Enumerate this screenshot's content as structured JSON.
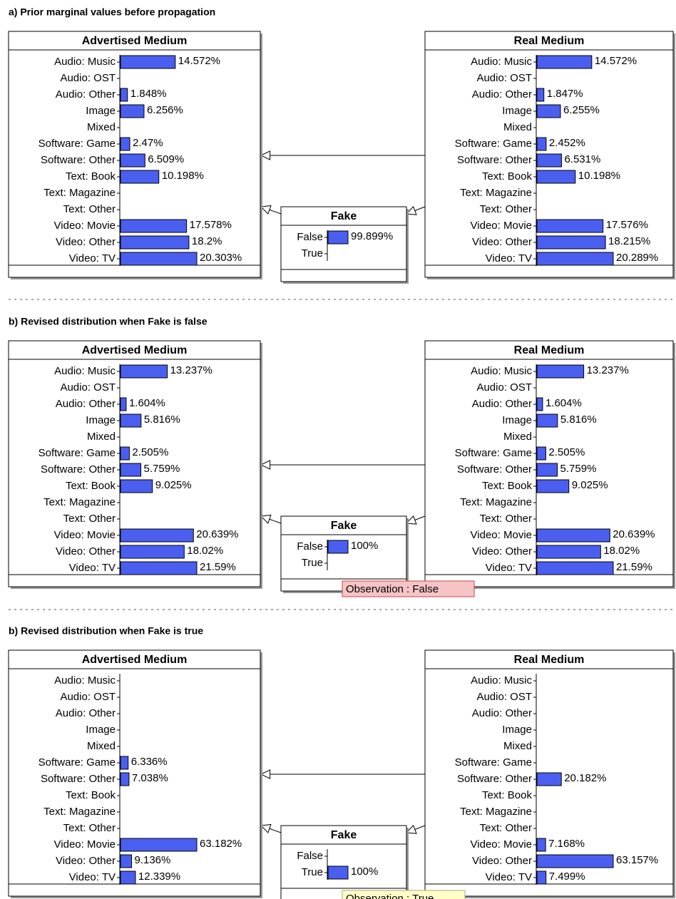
{
  "panels": [
    {
      "title": "a) Prior marginal values before propagation",
      "nodes": [
        {
          "title": "Advertised Medium",
          "states": [
            "Audio: Music",
            "Audio: OST",
            "Audio: Other",
            "Image",
            "Mixed",
            "Software: Game",
            "Software: Other",
            "Text: Book",
            "Text: Magazine",
            "Text: Other",
            "Video: Movie",
            "Video: Other",
            "Video: TV"
          ],
          "values": [
            14.572,
            null,
            1.848,
            6.256,
            null,
            2.47,
            6.509,
            10.198,
            null,
            null,
            17.578,
            18.2,
            20.303
          ],
          "value_labels": [
            "14.572%",
            null,
            "1.848%",
            "6.256%",
            null,
            "2.47%",
            "6.509%",
            "10.198%",
            null,
            null,
            "17.578%",
            "18.2%",
            "20.303%"
          ]
        },
        {
          "title": "Real Medium",
          "states": [
            "Audio: Music",
            "Audio: OST",
            "Audio: Other",
            "Image",
            "Mixed",
            "Software: Game",
            "Software: Other",
            "Text: Book",
            "Text: Magazine",
            "Text: Other",
            "Video: Movie",
            "Video: Other",
            "Video: TV"
          ],
          "values": [
            14.572,
            null,
            1.847,
            6.255,
            null,
            2.452,
            6.531,
            10.198,
            null,
            null,
            17.576,
            18.215,
            20.289
          ],
          "value_labels": [
            "14.572%",
            null,
            "1.847%",
            "6.255%",
            null,
            "2.452%",
            "6.531%",
            "10.198%",
            null,
            null,
            "17.576%",
            "18.215%",
            "20.289%"
          ]
        },
        {
          "title": "Fake",
          "states": [
            "False",
            "True"
          ],
          "values": [
            99.899,
            null
          ],
          "value_labels": [
            "99.899%",
            null
          ]
        }
      ]
    },
    {
      "title": "b) Revised distribution when Fake is false",
      "observation": "Observation : False",
      "nodes": [
        {
          "title": "Advertised Medium",
          "states": [
            "Audio: Music",
            "Audio: OST",
            "Audio: Other",
            "Image",
            "Mixed",
            "Software: Game",
            "Software: Other",
            "Text: Book",
            "Text: Magazine",
            "Text: Other",
            "Video: Movie",
            "Video: Other",
            "Video: TV"
          ],
          "values": [
            13.237,
            null,
            1.604,
            5.816,
            null,
            2.505,
            5.759,
            9.025,
            null,
            null,
            20.639,
            18.02,
            21.59
          ],
          "value_labels": [
            "13.237%",
            null,
            "1.604%",
            "5.816%",
            null,
            "2.505%",
            "5.759%",
            "9.025%",
            null,
            null,
            "20.639%",
            "18.02%",
            "21.59%"
          ]
        },
        {
          "title": "Real Medium",
          "states": [
            "Audio: Music",
            "Audio: OST",
            "Audio: Other",
            "Image",
            "Mixed",
            "Software: Game",
            "Software: Other",
            "Text: Book",
            "Text: Magazine",
            "Text: Other",
            "Video: Movie",
            "Video: Other",
            "Video: TV"
          ],
          "values": [
            13.237,
            null,
            1.604,
            5.816,
            null,
            2.505,
            5.759,
            9.025,
            null,
            null,
            20.639,
            18.02,
            21.59
          ],
          "value_labels": [
            "13.237%",
            null,
            "1.604%",
            "5.816%",
            null,
            "2.505%",
            "5.759%",
            "9.025%",
            null,
            null,
            "20.639%",
            "18.02%",
            "21.59%"
          ]
        },
        {
          "title": "Fake",
          "states": [
            "False",
            "True"
          ],
          "values": [
            100,
            null
          ],
          "value_labels": [
            "100%",
            null
          ]
        }
      ]
    },
    {
      "title": "b) Revised distribution when Fake is true",
      "observation": "Observation : True",
      "nodes": [
        {
          "title": "Advertised Medium",
          "states": [
            "Audio: Music",
            "Audio: OST",
            "Audio: Other",
            "Image",
            "Mixed",
            "Software: Game",
            "Software: Other",
            "Text: Book",
            "Text: Magazine",
            "Text: Other",
            "Video: Movie",
            "Video: Other",
            "Video: TV"
          ],
          "values": [
            null,
            null,
            null,
            null,
            null,
            6.336,
            7.038,
            null,
            null,
            null,
            63.182,
            9.136,
            12.339
          ],
          "value_labels": [
            null,
            null,
            null,
            null,
            null,
            "6.336%",
            "7.038%",
            null,
            null,
            null,
            "63.182%",
            "9.136%",
            "12.339%"
          ]
        },
        {
          "title": "Real Medium",
          "states": [
            "Audio: Music",
            "Audio: OST",
            "Audio: Other",
            "Image",
            "Mixed",
            "Software: Game",
            "Software: Other",
            "Text: Book",
            "Text: Magazine",
            "Text: Other",
            "Video: Movie",
            "Video: Other",
            "Video: TV"
          ],
          "values": [
            null,
            null,
            null,
            null,
            null,
            null,
            20.182,
            null,
            null,
            null,
            7.168,
            63.157,
            7.499
          ],
          "value_labels": [
            null,
            null,
            null,
            null,
            null,
            null,
            "20.182%",
            null,
            null,
            null,
            "7.168%",
            "63.157%",
            "7.499%"
          ]
        },
        {
          "title": "Fake",
          "states": [
            "False",
            "True"
          ],
          "values": [
            null,
            100
          ],
          "value_labels": [
            null,
            "100%"
          ]
        }
      ]
    }
  ]
}
